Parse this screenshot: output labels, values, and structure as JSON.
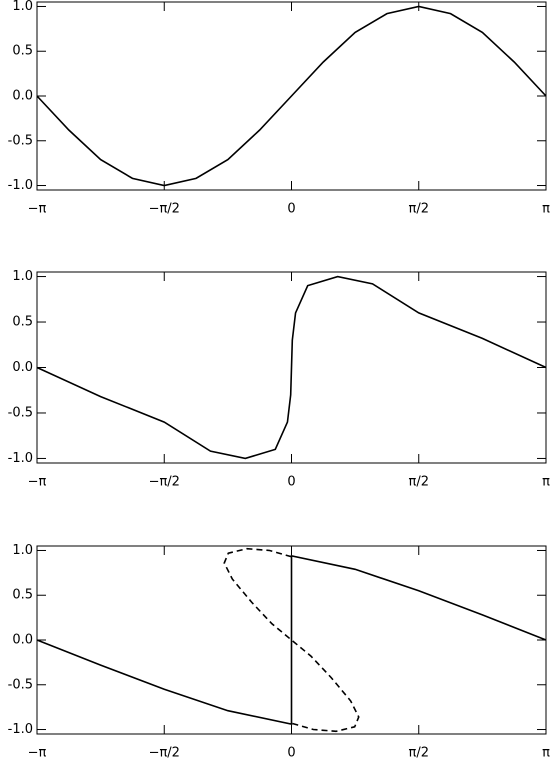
{
  "chart_data": [
    {
      "type": "line",
      "series": [
        {
          "color": "#000000",
          "linestyle": "solid",
          "x": [
            -3.1416,
            -2.7489,
            -2.3562,
            -1.9635,
            -1.5708,
            -1.1781,
            -0.7854,
            -0.3927,
            0,
            0.3927,
            0.7854,
            1.1781,
            1.5708,
            1.9635,
            2.3562,
            2.7489,
            3.1416
          ],
          "values": [
            0,
            -0.38,
            -0.71,
            -0.92,
            -1.0,
            -0.92,
            -0.71,
            -0.38,
            0,
            0.38,
            0.71,
            0.92,
            1.0,
            0.92,
            0.71,
            0.38,
            0
          ]
        }
      ],
      "xlim": [
        -3.1416,
        3.1416
      ],
      "xticks": [
        {
          "value": -3.1416,
          "label": "−π"
        },
        {
          "value": -1.5708,
          "label": "−π/2"
        },
        0,
        {
          "value": 1.5708,
          "label": "π/2"
        },
        {
          "value": 3.1416,
          "label": "π"
        }
      ],
      "ylim": [
        -1.05,
        1.05
      ],
      "yticks": [
        {
          "value": 1,
          "label": "1.0"
        },
        {
          "value": 0.5,
          "label": "0.5"
        },
        {
          "value": 0,
          "label": "0.0"
        },
        {
          "value": -0.5,
          "label": "-0.5"
        },
        {
          "value": -1,
          "label": "-1.0"
        }
      ]
    },
    {
      "type": "line",
      "series": [
        {
          "color": "#000000",
          "linestyle": "solid",
          "x": [
            -3.1416,
            -2.3562,
            -1.5708,
            -1.0,
            -0.57,
            -0.2,
            -0.05,
            -0.01,
            0,
            0.01,
            0.05,
            0.2,
            0.57,
            1.0,
            1.5708,
            2.3562,
            3.1416
          ],
          "values": [
            0,
            -0.32,
            -0.6,
            -0.92,
            -1.0,
            -0.9,
            -0.6,
            -0.3,
            0,
            0.3,
            0.6,
            0.9,
            1.0,
            0.92,
            0.6,
            0.32,
            0
          ]
        }
      ],
      "xlim": [
        -3.1416,
        3.1416
      ],
      "xticks": [
        {
          "value": -3.1416,
          "label": "−π"
        },
        {
          "value": -1.5708,
          "label": "−π/2"
        },
        0,
        {
          "value": 1.5708,
          "label": "π/2"
        },
        {
          "value": 3.1416,
          "label": "π"
        }
      ],
      "ylim": [
        -1.05,
        1.05
      ],
      "yticks": [
        {
          "value": 1,
          "label": "1.0"
        },
        {
          "value": 0.5,
          "label": "0.5"
        },
        {
          "value": 0,
          "label": "0.0"
        },
        {
          "value": -0.5,
          "label": "-0.5"
        },
        {
          "value": -1,
          "label": "-1.0"
        }
      ]
    },
    {
      "type": "line",
      "series": [
        {
          "color": "#000000",
          "linestyle": "solid",
          "x": [
            -3.1416,
            -2.3562,
            -1.5708,
            -0.7854,
            0,
            0,
            0.7854,
            1.5708,
            2.3562,
            3.1416
          ],
          "values": [
            0,
            -0.28,
            -0.55,
            -0.79,
            -0.94,
            0.94,
            0.79,
            0.55,
            0.28,
            0
          ]
        },
        {
          "color": "#000000",
          "linestyle": "dashed",
          "x": [
            0,
            -0.27,
            -0.55,
            -0.78,
            -0.83,
            -0.73,
            -0.49,
            -0.24,
            0,
            0.24,
            0.49,
            0.73,
            0.83,
            0.78,
            0.55,
            0.27,
            0
          ],
          "values": [
            0.93,
            1.0,
            1.02,
            0.97,
            0.86,
            0.68,
            0.42,
            0.18,
            0,
            -0.18,
            -0.42,
            -0.68,
            -0.86,
            -0.97,
            -1.02,
            -1.0,
            -0.93
          ]
        }
      ],
      "xlim": [
        -3.1416,
        3.1416
      ],
      "xticks": [
        {
          "value": -3.1416,
          "label": "−π"
        },
        {
          "value": -1.5708,
          "label": "−π/2"
        },
        0,
        {
          "value": 1.5708,
          "label": "π/2"
        },
        {
          "value": 3.1416,
          "label": "π"
        }
      ],
      "ylim": [
        -1.05,
        1.05
      ],
      "yticks": [
        {
          "value": 1,
          "label": "1.0"
        },
        {
          "value": 0.5,
          "label": "0.5"
        },
        {
          "value": 0,
          "label": "0.0"
        },
        {
          "value": -0.5,
          "label": "-0.5"
        },
        {
          "value": -1,
          "label": "-1.0"
        }
      ]
    }
  ]
}
